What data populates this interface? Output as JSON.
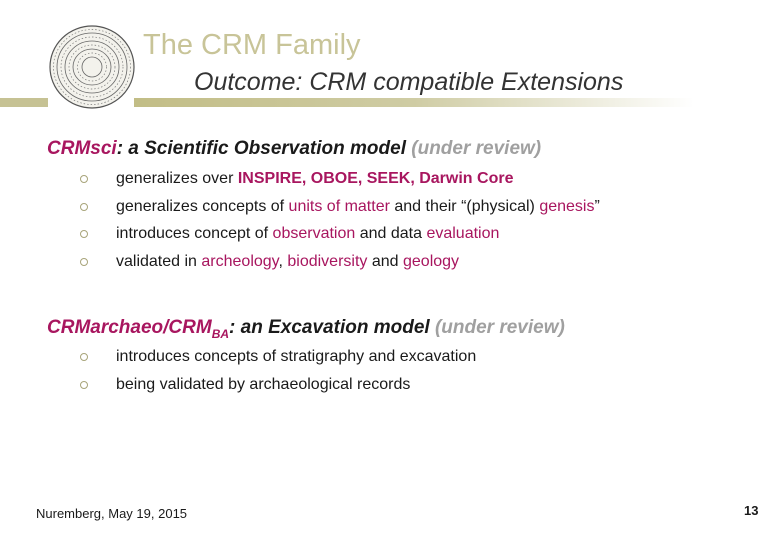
{
  "header": {
    "title": "The CRM Family",
    "subtitle": "Outcome: CRM compatible Extensions",
    "logo_icon": "phaistos-disc-logo"
  },
  "colors": {
    "accent": "#a8165f",
    "title": "#c8c498",
    "bar": "#c2bd86",
    "muted": "#a0a0a0"
  },
  "sections": [
    {
      "name": "CRMsci",
      "rest": ": a Scientific Observation model",
      "status": "(under review)",
      "bullets": [
        {
          "t1": "generalizes over ",
          "h1": "INSPIRE, OBOE, SEEK, Darwin Core"
        },
        {
          "t1": "generalizes concepts of ",
          "h1": "units of matter",
          "t2": " and their “(physical) ",
          "h2": "genesis",
          "t3": "”"
        },
        {
          "t1": "introduces concept of ",
          "h1": "observation",
          "t2": " and data ",
          "h2": "evaluation"
        },
        {
          "t1": "validated in ",
          "h1": "archeology",
          "t2": ", ",
          "h2": "biodiversity",
          "t3": " and ",
          "h3": "geology"
        }
      ]
    },
    {
      "name": "CRMarchaeo/CRM",
      "name_sub": "BA",
      "rest": ": an Excavation model",
      "status": "(under review)",
      "bullets": [
        {
          "t1": "introduces concepts of stratigraphy and excavation"
        },
        {
          "t1": "being validated by archaeological records"
        }
      ]
    }
  ],
  "footer": {
    "text": "Nuremberg, May 19, 2015",
    "page": "13"
  }
}
